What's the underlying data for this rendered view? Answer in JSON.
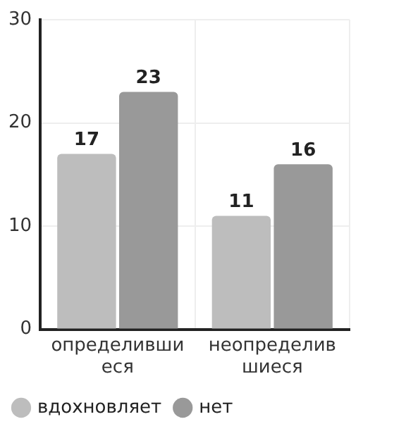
{
  "chart_data": {
    "type": "bar",
    "categories": [
      "определившиеся",
      "неопределившиеся"
    ],
    "series": [
      {
        "name": "вдохновляет",
        "color": "#bdbdbd",
        "values": [
          17,
          11
        ]
      },
      {
        "name": "нет",
        "color": "#999999",
        "values": [
          23,
          16
        ]
      }
    ],
    "ylim": [
      0,
      30
    ],
    "yticks": [
      0,
      10,
      20,
      30
    ],
    "grid": true,
    "legend": "bottom left",
    "data_labels": true
  }
}
